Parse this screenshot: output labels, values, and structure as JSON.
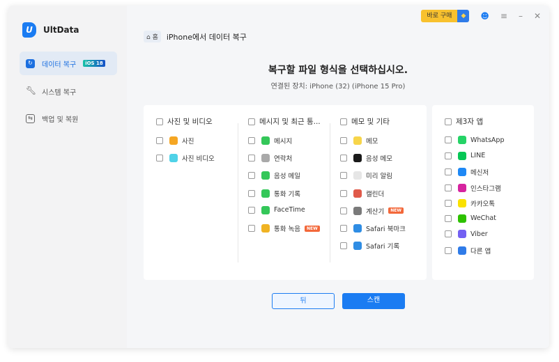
{
  "app": {
    "name": "UltData"
  },
  "sidebar": {
    "items": [
      {
        "label": "데이터 복구",
        "badge": "iOS 18",
        "icon": "restore-icon"
      },
      {
        "label": "시스템 복구",
        "icon": "wrench-icon"
      },
      {
        "label": "백업 및 복원",
        "icon": "backup-icon"
      }
    ]
  },
  "topbar": {
    "buy_label": "바로 구매",
    "icons": [
      "diamond-icon",
      "user-icon",
      "menu-icon",
      "minimize-icon",
      "close-icon"
    ]
  },
  "breadcrumb": {
    "home": "홈",
    "current": "iPhone에서 데이터 복구"
  },
  "main": {
    "title": "복구할 파일 형식을 선택하십시오.",
    "device": "연결된 장치: iPhone (32) (iPhone 15 Pro)"
  },
  "categories": [
    {
      "title": "사진 및 비디오",
      "items": [
        {
          "label": "사진",
          "color": "#f5a623"
        },
        {
          "label": "사진 비디오",
          "color": "#4fd2e8"
        }
      ]
    },
    {
      "title": "메시지 및 최근 통...",
      "items": [
        {
          "label": "메시지",
          "color": "#34c759"
        },
        {
          "label": "연락처",
          "color": "#a9a9a9"
        },
        {
          "label": "음성 메일",
          "color": "#34c759"
        },
        {
          "label": "통화 기록",
          "color": "#34c759"
        },
        {
          "label": "FaceTime",
          "color": "#34c759"
        },
        {
          "label": "통화 녹음",
          "color": "#f0b323",
          "badge": "NEW"
        }
      ]
    },
    {
      "title": "메모 및 기타",
      "items": [
        {
          "label": "메모",
          "color": "#f7d54a"
        },
        {
          "label": "음성 메모",
          "color": "#1a1a1a"
        },
        {
          "label": "미리 알림",
          "color": "#e6e6e6"
        },
        {
          "label": "캘린더",
          "color": "#e05a4a"
        },
        {
          "label": "계산기",
          "color": "#7a7a7a",
          "badge": "NEW"
        },
        {
          "label": "Safari 북마크",
          "color": "#2f8de4"
        },
        {
          "label": "Safari 기록",
          "color": "#2f8de4"
        }
      ]
    },
    {
      "title": "제3자 앱",
      "items": [
        {
          "label": "WhatsApp",
          "color": "#25d366"
        },
        {
          "label": "LINE",
          "color": "#06c755"
        },
        {
          "label": "메신저",
          "color": "#1e88f5"
        },
        {
          "label": "인스타그램",
          "color": "#d6249f"
        },
        {
          "label": "카카오톡",
          "color": "#fae100"
        },
        {
          "label": "WeChat",
          "color": "#2dc100"
        },
        {
          "label": "Viber",
          "color": "#7360f2"
        },
        {
          "label": "다른 앱",
          "color": "#2f7be8"
        }
      ]
    }
  ],
  "buttons": {
    "back": "뒤",
    "scan": "스캔"
  },
  "colors": {
    "accent": "#1b7cf2",
    "buy": "#f8c12e"
  }
}
